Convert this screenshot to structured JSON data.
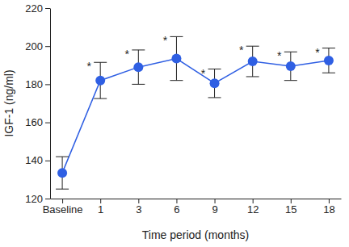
{
  "chart_data": {
    "type": "line",
    "x_label": "Time period (months)",
    "y_label": "IGF-1 (ng/ml)",
    "categories": [
      "Baseline",
      "1",
      "3",
      "6",
      "9",
      "12",
      "15",
      "18"
    ],
    "series": [
      {
        "name": "IGF-1",
        "color": "#2f5fe3",
        "marker": "circle",
        "line_style": "solid",
        "values": [
          133.5,
          182,
          189,
          193.5,
          180.5,
          192,
          189.5,
          192.5
        ],
        "errors": [
          8.5,
          9.5,
          9,
          11.5,
          7.5,
          8,
          7.5,
          6.5
        ]
      }
    ],
    "ylim": [
      120,
      220
    ],
    "yticks": [
      120,
      140,
      160,
      180,
      200,
      220
    ],
    "annotations": [
      {
        "text": "*",
        "category": "1"
      },
      {
        "text": "*",
        "category": "3"
      },
      {
        "text": "*",
        "category": "6"
      },
      {
        "text": "*",
        "category": "9"
      },
      {
        "text": "*",
        "category": "12"
      },
      {
        "text": "*",
        "category": "15"
      },
      {
        "text": "*",
        "category": "18"
      }
    ]
  }
}
